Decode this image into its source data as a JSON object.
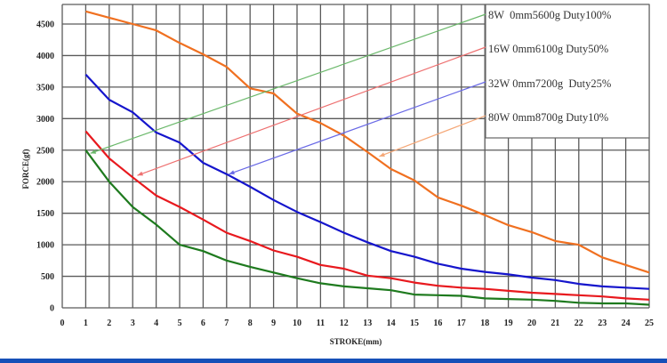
{
  "chart_data": {
    "type": "line",
    "title": "",
    "xlabel": "STROKE(mm)",
    "ylabel": "FORCE(gf)",
    "xlim": [
      0,
      25
    ],
    "ylim": [
      0,
      4750
    ],
    "grid": true,
    "x_ticks": [
      0,
      1,
      2,
      3,
      4,
      5,
      6,
      7,
      8,
      9,
      10,
      11,
      12,
      13,
      14,
      15,
      16,
      17,
      18,
      19,
      20,
      21,
      22,
      23,
      24,
      25
    ],
    "y_ticks": [
      0,
      500,
      1000,
      1500,
      2000,
      2500,
      3000,
      3500,
      4000,
      4500
    ],
    "x": [
      1,
      2,
      3,
      4,
      5,
      6,
      7,
      8,
      9,
      10,
      11,
      12,
      13,
      14,
      15,
      16,
      17,
      18,
      19,
      20,
      21,
      22,
      23,
      24,
      25
    ],
    "legend_position": "top-right",
    "series": [
      {
        "name": "8W  0mm5600g Duty100%",
        "color": "#1e7a1e",
        "arrow_color": "#6ab86a",
        "arrow_target": [
          1.2,
          2450
        ],
        "values": [
          2500,
          2000,
          1600,
          1320,
          1000,
          900,
          750,
          650,
          560,
          470,
          390,
          340,
          310,
          280,
          210,
          200,
          190,
          150,
          140,
          130,
          110,
          80,
          70,
          70,
          50
        ]
      },
      {
        "name": "16W 0mm6100g Duty50%",
        "color": "#e8191e",
        "arrow_color": "#ee7070",
        "arrow_target": [
          3.2,
          2100
        ],
        "values": [
          2800,
          2370,
          2070,
          1780,
          1600,
          1400,
          1190,
          1060,
          910,
          810,
          680,
          620,
          510,
          470,
          400,
          350,
          320,
          300,
          270,
          240,
          220,
          200,
          180,
          150,
          130
        ]
      },
      {
        "name": "32W 0mm7200g  Duty25%",
        "color": "#1515cc",
        "arrow_color": "#6a6ae6",
        "arrow_target": [
          7.1,
          2120
        ],
        "values": [
          3700,
          3300,
          3100,
          2780,
          2620,
          2300,
          2120,
          1920,
          1710,
          1520,
          1360,
          1190,
          1040,
          900,
          810,
          700,
          620,
          570,
          530,
          480,
          440,
          380,
          340,
          320,
          300
        ]
      },
      {
        "name": "80W 0mm8700g Duty10%",
        "color": "#f07020",
        "arrow_color": "#f5a878",
        "arrow_target": [
          13.5,
          2400
        ],
        "values": [
          4700,
          4600,
          4500,
          4400,
          4200,
          4020,
          3820,
          3480,
          3400,
          3080,
          2930,
          2730,
          2470,
          2200,
          2020,
          1750,
          1620,
          1470,
          1310,
          1200,
          1060,
          1000,
          800,
          680,
          560
        ]
      }
    ]
  },
  "colors": {
    "grid": "#5a5a5a",
    "bottom_bar": "#1650b8"
  }
}
